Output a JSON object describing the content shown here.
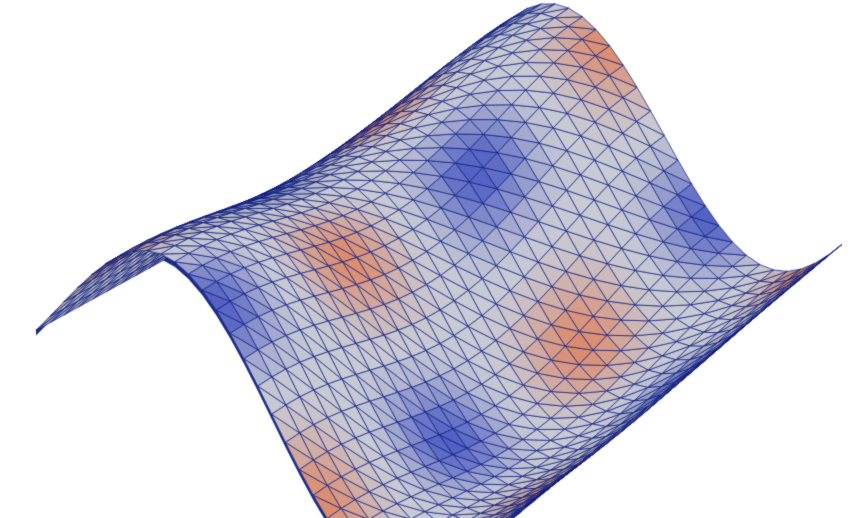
{
  "scene": {
    "background_color": "#ffffff",
    "surface": {
      "type": "triangulated-wavy-surface",
      "wire_color": "#0a1880",
      "colormap": {
        "low_color": "#3b4cc0",
        "mid_color": "#c8cad4",
        "high_color": "#e0805a"
      },
      "shading": "lit",
      "subdivisions_u": 30,
      "subdivisions_v": 28
    }
  }
}
